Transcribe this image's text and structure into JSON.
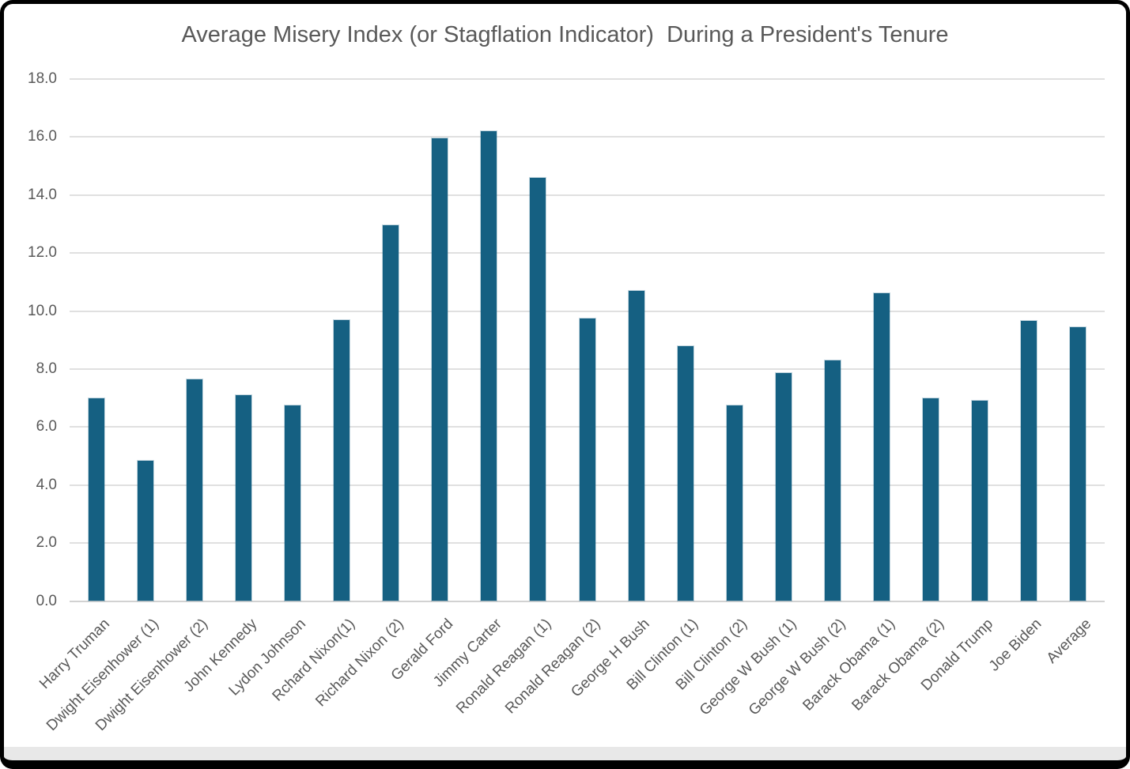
{
  "window": {
    "frame_color": "#000000",
    "bottom_strip_color": "#e8e8e8",
    "background_color": "#ffffff"
  },
  "chart_data": {
    "type": "bar",
    "title": "Average Misery Index (or Stagflation Indicator)  During a President's Tenure",
    "categories": [
      "Harry Truman",
      "Dwight Eisenhower (1)",
      "Dwight Eisenhower (2)",
      "John Kennedy",
      "Lydon Johnson",
      "Rchard Nixon(1)",
      "Richard Nixon (2)",
      "Gerald Ford",
      "Jimmy Carter",
      "Ronald Reagan (1)",
      "Ronald Reagan (2)",
      "George H Bush",
      "Bill Clinton (1)",
      "Bill Clinton (2)",
      "George W Bush (1)",
      "George W Bush (2)",
      "Barack Obama (1)",
      "Barack Obama (2)",
      "Donald Trump",
      "Joe Biden",
      "Average"
    ],
    "values": [
      7.0,
      4.85,
      7.65,
      7.1,
      6.75,
      9.7,
      12.95,
      15.95,
      16.2,
      14.6,
      9.75,
      10.7,
      8.8,
      6.75,
      7.85,
      8.3,
      10.6,
      7.0,
      6.9,
      9.65,
      9.45
    ],
    "xlabel": "",
    "ylabel": "",
    "ylim": [
      0,
      18
    ],
    "ytick_step": 2,
    "ytick_labels": [
      "0.0",
      "2.0",
      "4.0",
      "6.0",
      "8.0",
      "10.0",
      "12.0",
      "14.0",
      "16.0",
      "18.0"
    ],
    "grid": "horizontal",
    "legend": "none",
    "colors": {
      "bar": "#156082",
      "gridline": "#e0e0e0",
      "axis_text": "#595959",
      "title_text": "#595959"
    }
  }
}
